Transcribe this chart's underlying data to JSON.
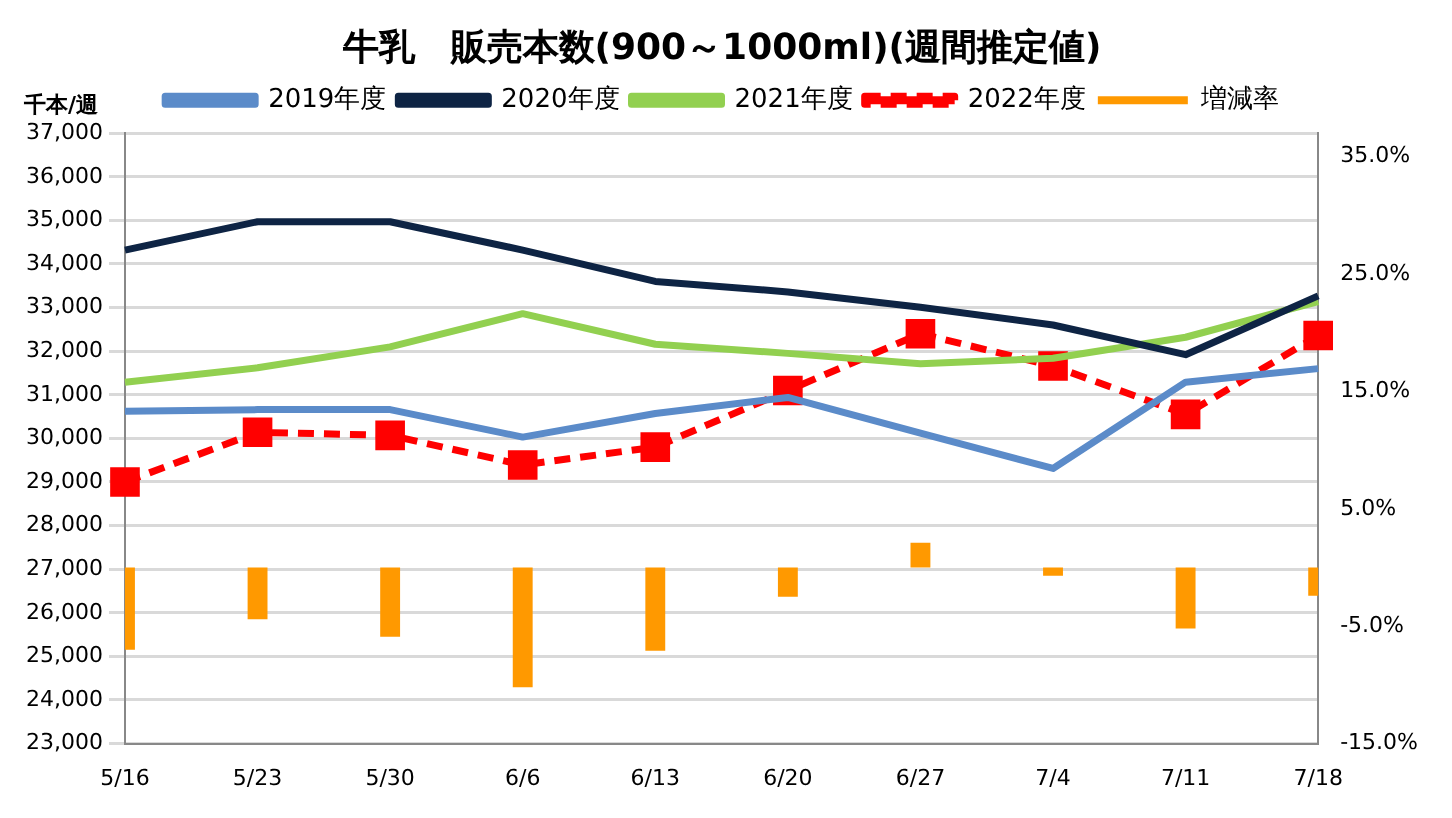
{
  "chart_data": {
    "type": "line",
    "title": "牛乳　販売本数(900～1000ml)(週間推定値)",
    "ylabel": "千本/週",
    "categories": [
      "5/16",
      "5/23",
      "5/30",
      "6/6",
      "6/13",
      "6/20",
      "6/27",
      "7/4",
      "7/11",
      "7/18"
    ],
    "series": [
      {
        "name": "増減率",
        "type": "bar",
        "axis": "y2",
        "color": "#ff9900",
        "values": [
          -7.0,
          -4.4,
          -5.9,
          -10.2,
          -7.1,
          -2.5,
          2.1,
          -0.7,
          -5.2,
          -2.4
        ]
      },
      {
        "name": "2019年度",
        "color": "#5b8bc9",
        "marker": "none",
        "values": [
          30620,
          30660,
          30660,
          30030,
          30570,
          30940,
          30120,
          29310,
          31290,
          31600
        ]
      },
      {
        "name": "2020年度",
        "color": "#0e2444",
        "marker": "none",
        "values": [
          34320,
          34970,
          34970,
          34320,
          33600,
          33360,
          33010,
          32600,
          31920,
          33270
        ]
      },
      {
        "name": "2021年度",
        "color": "#92d050",
        "marker": "none",
        "values": [
          31290,
          31620,
          32100,
          32860,
          32160,
          31950,
          31710,
          31840,
          32320,
          33140
        ]
      },
      {
        "name": "2022年度",
        "color": "#ff0000",
        "marker": "square",
        "line_style": "dashed",
        "values": [
          29000,
          30140,
          30070,
          29390,
          29800,
          31100,
          32400,
          31660,
          30550,
          32360
        ]
      }
    ],
    "ylim": [
      23000,
      37000
    ],
    "yticks": [
      {
        "value": 23000,
        "label": "23,000"
      },
      {
        "value": 24000,
        "label": "24,000"
      },
      {
        "value": 25000,
        "label": "25,000"
      },
      {
        "value": 26000,
        "label": "26,000"
      },
      {
        "value": 27000,
        "label": "27,000"
      },
      {
        "value": 28000,
        "label": "28,000"
      },
      {
        "value": 29000,
        "label": "29,000"
      },
      {
        "value": 30000,
        "label": "30,000"
      },
      {
        "value": 31000,
        "label": "31,000"
      },
      {
        "value": 32000,
        "label": "32,000"
      },
      {
        "value": 33000,
        "label": "33,000"
      },
      {
        "value": 34000,
        "label": "34,000"
      },
      {
        "value": 35000,
        "label": "35,000"
      },
      {
        "value": 36000,
        "label": "36,000"
      },
      {
        "value": 37000,
        "label": "37,000"
      }
    ],
    "y2lim": [
      -15,
      37
    ],
    "y2ticks": [
      {
        "value": -15,
        "label": "-15.0%"
      },
      {
        "value": -5,
        "label": "-5.0%"
      },
      {
        "value": 5,
        "label": "5.0%"
      },
      {
        "value": 15,
        "label": "15.0%"
      },
      {
        "value": 25,
        "label": "25.0%"
      },
      {
        "value": 35,
        "label": "35.0%"
      }
    ],
    "grid": "y",
    "legend": "top"
  }
}
